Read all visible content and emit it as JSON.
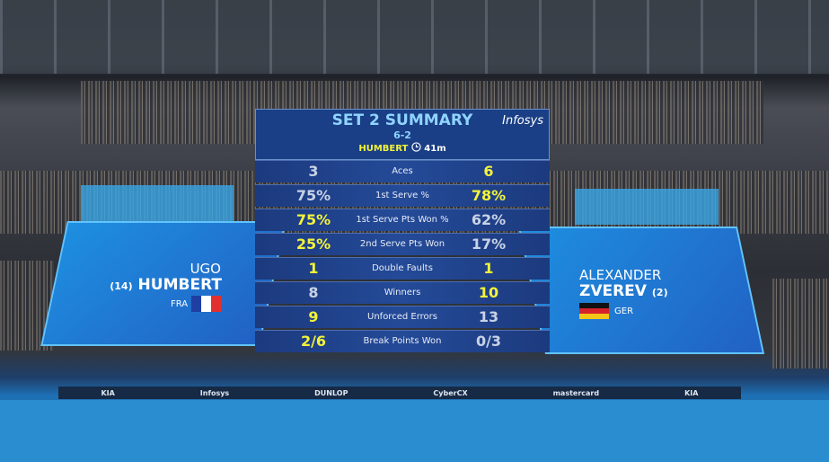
{
  "header": {
    "title": "SET 2 SUMMARY",
    "score": "6-2",
    "winner": "HUMBERT",
    "duration": "41m",
    "sponsor": "Infosys"
  },
  "player_left": {
    "first_name": "UGO",
    "seed": "(14)",
    "last_name": "HUMBERT",
    "country": "FRA"
  },
  "player_right": {
    "first_name": "ALEXANDER",
    "last_name": "ZVEREV",
    "seed": "(2)",
    "country": "GER"
  },
  "stats": [
    {
      "label": "Aces",
      "left": "3",
      "right": "6",
      "left_color": "#c9d3e6",
      "right_color": "#f3f33a"
    },
    {
      "label": "1st Serve %",
      "left": "75%",
      "right": "78%",
      "left_color": "#c9d3e6",
      "right_color": "#f3f33a"
    },
    {
      "label": "1st Serve Pts Won %",
      "left": "75%",
      "right": "62%",
      "left_color": "#f3f33a",
      "right_color": "#c9d3e6"
    },
    {
      "label": "2nd Serve Pts Won",
      "left": "25%",
      "right": "17%",
      "left_color": "#f3f33a",
      "right_color": "#c9d3e6"
    },
    {
      "label": "Double Faults",
      "left": "1",
      "right": "1",
      "left_color": "#f3f33a",
      "right_color": "#f3f33a"
    },
    {
      "label": "Winners",
      "left": "8",
      "right": "10",
      "left_color": "#c9d3e6",
      "right_color": "#f3f33a"
    },
    {
      "label": "Unforced Errors",
      "left": "9",
      "right": "13",
      "left_color": "#f3f33a",
      "right_color": "#c9d3e6"
    },
    {
      "label": "Break Points Won",
      "left": "2/6",
      "right": "0/3",
      "left_color": "#f3f33a",
      "right_color": "#c9d3e6"
    }
  ],
  "ads": [
    "KIA",
    "Infosys",
    "DUNLOP",
    "CyberCX",
    "mastercard",
    "KIA"
  ]
}
